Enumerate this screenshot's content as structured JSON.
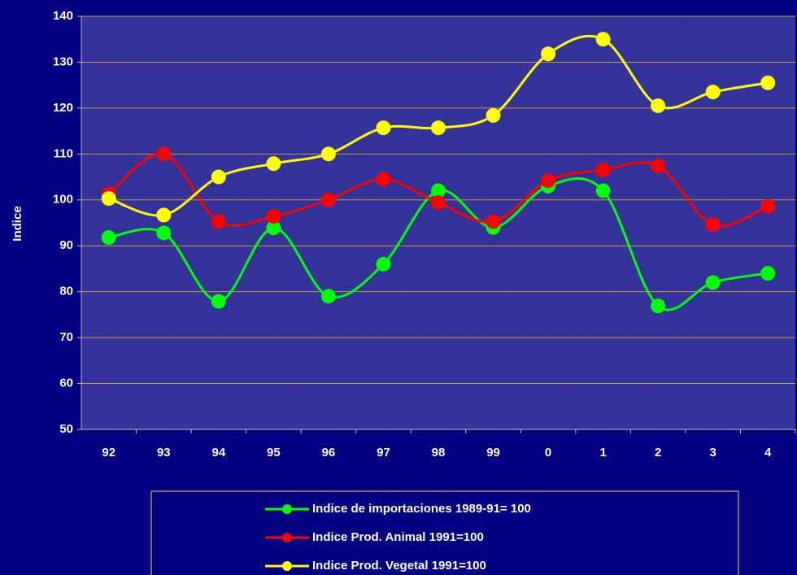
{
  "chart_data": {
    "type": "line",
    "y_label": "Indice",
    "categories": [
      "92",
      "93",
      "94",
      "95",
      "96",
      "97",
      "98",
      "99",
      "0",
      "1",
      "2",
      "3",
      "4"
    ],
    "series": [
      {
        "name": "Indice de importaciones 1989-91= 100",
        "color": "#00ff00",
        "values": [
          91.8,
          92.8,
          77.9,
          93.9,
          79,
          86,
          102,
          94,
          103,
          102,
          76.9,
          82,
          84
        ]
      },
      {
        "name": "Indice Prod. Animal 1991=100",
        "color": "#ff0000",
        "values": [
          101.3,
          110,
          95.3,
          96.4,
          100,
          104.5,
          99.4,
          95.3,
          104.2,
          106.5,
          107.4,
          94.6,
          98.6
        ]
      },
      {
        "name": "Indice Prod. Vegetal 1991=100",
        "color": "#ffff00",
        "values": [
          100.3,
          96.7,
          105,
          107.9,
          110,
          115.7,
          115.7,
          118.4,
          131.8,
          135,
          120.5,
          123.5,
          125.5
        ]
      }
    ],
    "ylim": [
      50,
      140
    ],
    "yticks": [
      50,
      60,
      70,
      80,
      90,
      100,
      110,
      120,
      130,
      140
    ],
    "grid": true,
    "legend": "bottom",
    "smooth": true
  }
}
